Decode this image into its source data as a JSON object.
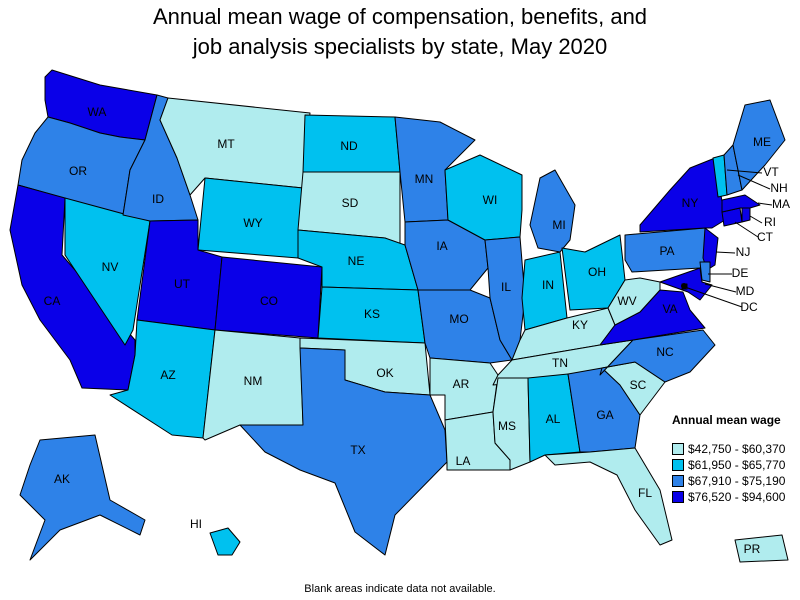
{
  "title_line1": "Annual mean wage of compensation, benefits, and",
  "title_line2": "job analysis specialists by state, May 2020",
  "legend": {
    "title": "Annual mean wage",
    "bins": [
      {
        "label": "$42,750 - $60,370",
        "color": "#b0ecee"
      },
      {
        "label": "$61,950 - $65,770",
        "color": "#00c1ef"
      },
      {
        "label": "$67,910 - $75,190",
        "color": "#2e82e8"
      },
      {
        "label": "$76,520 - $94,600",
        "color": "#0a00e8"
      }
    ]
  },
  "footnote": "Blank areas indicate data not available.",
  "states": [
    {
      "abbr": "WA",
      "bin": 3
    },
    {
      "abbr": "OR",
      "bin": 2
    },
    {
      "abbr": "CA",
      "bin": 3
    },
    {
      "abbr": "NV",
      "bin": 1
    },
    {
      "abbr": "ID",
      "bin": 2
    },
    {
      "abbr": "MT",
      "bin": 0
    },
    {
      "abbr": "WY",
      "bin": 1
    },
    {
      "abbr": "UT",
      "bin": 3
    },
    {
      "abbr": "CO",
      "bin": 3
    },
    {
      "abbr": "AZ",
      "bin": 1
    },
    {
      "abbr": "NM",
      "bin": 0
    },
    {
      "abbr": "ND",
      "bin": 1
    },
    {
      "abbr": "SD",
      "bin": 0
    },
    {
      "abbr": "NE",
      "bin": 1
    },
    {
      "abbr": "KS",
      "bin": 1
    },
    {
      "abbr": "OK",
      "bin": 0
    },
    {
      "abbr": "TX",
      "bin": 2
    },
    {
      "abbr": "MN",
      "bin": 2
    },
    {
      "abbr": "IA",
      "bin": 2
    },
    {
      "abbr": "MO",
      "bin": 2
    },
    {
      "abbr": "AR",
      "bin": 0
    },
    {
      "abbr": "LA",
      "bin": 0
    },
    {
      "abbr": "WI",
      "bin": 1
    },
    {
      "abbr": "IL",
      "bin": 2
    },
    {
      "abbr": "MI",
      "bin": 2
    },
    {
      "abbr": "IN",
      "bin": 1
    },
    {
      "abbr": "OH",
      "bin": 1
    },
    {
      "abbr": "KY",
      "bin": 0
    },
    {
      "abbr": "TN",
      "bin": 0
    },
    {
      "abbr": "MS",
      "bin": 0
    },
    {
      "abbr": "AL",
      "bin": 1
    },
    {
      "abbr": "GA",
      "bin": 2
    },
    {
      "abbr": "FL",
      "bin": 0
    },
    {
      "abbr": "SC",
      "bin": 0
    },
    {
      "abbr": "NC",
      "bin": 2
    },
    {
      "abbr": "VA",
      "bin": 3
    },
    {
      "abbr": "WV",
      "bin": 0
    },
    {
      "abbr": "PA",
      "bin": 2
    },
    {
      "abbr": "NY",
      "bin": 3
    },
    {
      "abbr": "NJ",
      "bin": 3
    },
    {
      "abbr": "DE",
      "bin": 2
    },
    {
      "abbr": "MD",
      "bin": 3
    },
    {
      "abbr": "DC",
      "bin": 3
    },
    {
      "abbr": "CT",
      "bin": 3
    },
    {
      "abbr": "RI",
      "bin": 3
    },
    {
      "abbr": "MA",
      "bin": 3
    },
    {
      "abbr": "VT",
      "bin": 1
    },
    {
      "abbr": "NH",
      "bin": 2
    },
    {
      "abbr": "ME",
      "bin": 2
    },
    {
      "abbr": "AK",
      "bin": 2
    },
    {
      "abbr": "HI",
      "bin": 1
    },
    {
      "abbr": "PR",
      "bin": 0
    }
  ]
}
